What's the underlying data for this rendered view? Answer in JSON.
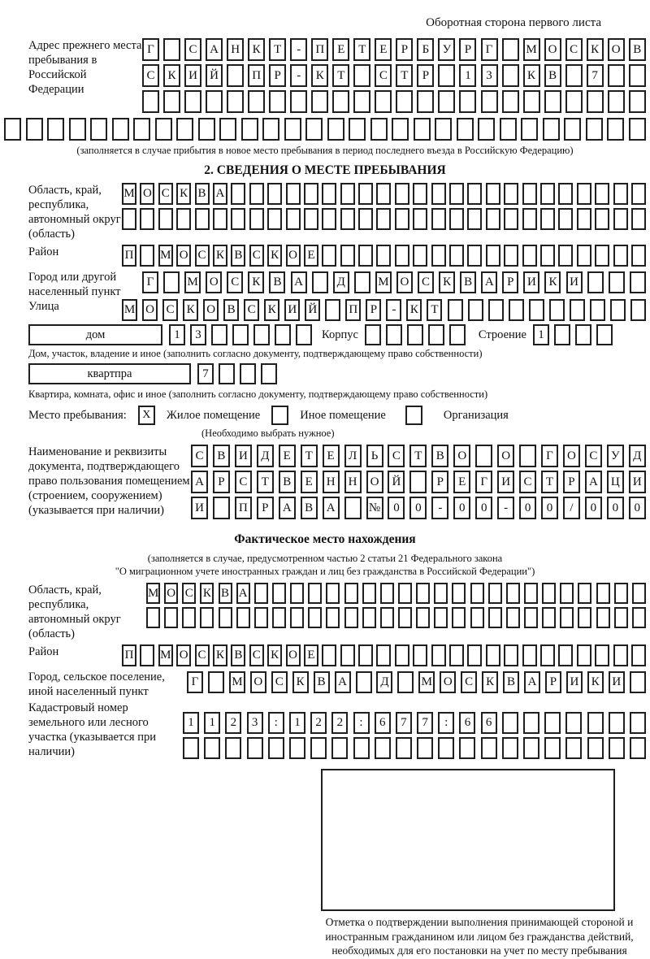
{
  "header": {
    "note": "Оборотная сторона первого листа"
  },
  "labels": {
    "prev_address": "Адрес прежнего места пребывания в Российской Федерации",
    "prev_note": "(заполняется в случае прибытия в новое место пребывания в период последнего въезда в Российскую Федерацию)",
    "section2": "2. СВЕДЕНИЯ О МЕСТЕ ПРЕБЫВАНИЯ",
    "region": "Область, край, республика, автономный округ (область)",
    "district": "Район",
    "city1": "Город или другой населенный пункт",
    "street": "Улица",
    "house": "дом",
    "korpus": "Корпус",
    "stroenie": "Строение",
    "house_note": "Дом, участок, владение и иное (заполнить согласно документу, подтверждающему право собственности)",
    "apartment": "квартпра",
    "apartment_note": "Квартира, комната, офис и иное (заполнить согласно документу, подтверждающему право собственности)",
    "place_type": "Место пребывания:",
    "opt_residential": "Жилое помещение",
    "opt_other": "Иное помещение",
    "opt_org": "Организация",
    "choose_note": "(Необходимо выбрать нужное)",
    "doc_label": "Наименование и реквизиты документа, подтверждающего право пользования помещением (строением, сооружением) (указывается при наличии)",
    "fact_title": "Фактическое место нахождения",
    "fact_note1": "(заполняется в случае, предусмотренном частью 2 статьи 21 Федерального закона",
    "fact_note2": "\"О миграционном учете иностранных граждан и лиц без гражданства в Российской Федерации\")",
    "city2": "Город, сельское поселение, иной населенный пункт",
    "cadastral": "Кадастровый номер земельного или лесного участка (указывается при наличии)",
    "stamp_note": "Отметка о подтверждении выполнения принимающей стороной и иностранным гражданином или лицом без гражданства действий, необходимых для его постановки на учет по месту пребывания"
  },
  "checkboxes": {
    "residential": "X",
    "other": "",
    "organization": ""
  },
  "grids": {
    "prev_row1": [
      "Г",
      "",
      "С",
      "А",
      "Н",
      "К",
      "Т",
      "-",
      "П",
      "Е",
      "Т",
      "Е",
      "Р",
      "Б",
      "У",
      "Р",
      "Г",
      "",
      "М",
      "О",
      "С",
      "К",
      "О",
      "В"
    ],
    "prev_row2": [
      "С",
      "К",
      "И",
      "Й",
      "",
      "П",
      "Р",
      "-",
      "К",
      "Т",
      "",
      "С",
      "Т",
      "Р",
      "",
      "1",
      "3",
      "",
      "К",
      "В",
      "",
      "7",
      "",
      ""
    ],
    "prev_row3": [
      "",
      "",
      "",
      "",
      "",
      "",
      "",
      "",
      "",
      "",
      "",
      "",
      "",
      "",
      "",
      "",
      "",
      "",
      "",
      "",
      "",
      "",
      "",
      ""
    ],
    "prev_row4": [
      "",
      "",
      "",
      "",
      "",
      "",
      "",
      "",
      "",
      "",
      "",
      "",
      "",
      "",
      "",
      "",
      "",
      "",
      "",
      "",
      "",
      "",
      "",
      "",
      "",
      "",
      "",
      "",
      "",
      ""
    ],
    "region1_row1": [
      "М",
      "О",
      "С",
      "К",
      "В",
      "А",
      "",
      "",
      "",
      "",
      "",
      "",
      "",
      "",
      "",
      "",
      "",
      "",
      "",
      "",
      "",
      "",
      "",
      "",
      "",
      "",
      "",
      "",
      ""
    ],
    "region1_row2": [
      "",
      "",
      "",
      "",
      "",
      "",
      "",
      "",
      "",
      "",
      "",
      "",
      "",
      "",
      "",
      "",
      "",
      "",
      "",
      "",
      "",
      "",
      "",
      "",
      "",
      "",
      "",
      "",
      ""
    ],
    "district1": [
      "П",
      "",
      "М",
      "О",
      "С",
      "К",
      "В",
      "С",
      "К",
      "О",
      "Е",
      "",
      "",
      "",
      "",
      "",
      "",
      "",
      "",
      "",
      "",
      "",
      "",
      "",
      "",
      "",
      "",
      "",
      ""
    ],
    "city1": [
      "Г",
      "",
      "М",
      "О",
      "С",
      "К",
      "В",
      "А",
      "",
      "Д",
      "",
      "М",
      "О",
      "С",
      "К",
      "В",
      "А",
      "Р",
      "И",
      "К",
      "И",
      "",
      "",
      ""
    ],
    "street": [
      "М",
      "О",
      "С",
      "К",
      "О",
      "В",
      "С",
      "К",
      "И",
      "Й",
      "",
      "П",
      "Р",
      "-",
      "К",
      "Т",
      "",
      "",
      "",
      "",
      "",
      "",
      "",
      "",
      "",
      ""
    ],
    "house_num": [
      "1",
      "3",
      "",
      "",
      "",
      "",
      ""
    ],
    "korpus": [
      "",
      "",
      "",
      "",
      ""
    ],
    "stroenie": [
      "1",
      "",
      "",
      ""
    ],
    "apartment": [
      "7",
      "",
      "",
      ""
    ],
    "doc_row1": [
      "С",
      "В",
      "И",
      "Д",
      "Е",
      "Т",
      "Е",
      "Л",
      "Ь",
      "С",
      "Т",
      "В",
      "О",
      "",
      "О",
      "",
      "Г",
      "О",
      "С",
      "У",
      "Д"
    ],
    "doc_row2": [
      "А",
      "Р",
      "С",
      "Т",
      "В",
      "Е",
      "Н",
      "Н",
      "О",
      "Й",
      "",
      "Р",
      "Е",
      "Г",
      "И",
      "С",
      "Т",
      "Р",
      "А",
      "Ц",
      "И"
    ],
    "doc_row3": [
      "И",
      "",
      "П",
      "Р",
      "А",
      "В",
      "А",
      "",
      "№",
      "0",
      "0",
      "-",
      "0",
      "0",
      "-",
      "0",
      "0",
      "/",
      "0",
      "0",
      "0"
    ],
    "region2_row1": [
      "М",
      "О",
      "С",
      "К",
      "В",
      "А",
      "",
      "",
      "",
      "",
      "",
      "",
      "",
      "",
      "",
      "",
      "",
      "",
      "",
      "",
      "",
      "",
      "",
      "",
      "",
      "",
      "",
      ""
    ],
    "region2_row2": [
      "",
      "",
      "",
      "",
      "",
      "",
      "",
      "",
      "",
      "",
      "",
      "",
      "",
      "",
      "",
      "",
      "",
      "",
      "",
      "",
      "",
      "",
      "",
      "",
      "",
      "",
      "",
      ""
    ],
    "district2": [
      "П",
      "",
      "М",
      "О",
      "С",
      "К",
      "В",
      "С",
      "К",
      "О",
      "Е",
      "",
      "",
      "",
      "",
      "",
      "",
      "",
      "",
      "",
      "",
      "",
      "",
      "",
      "",
      "",
      "",
      "",
      ""
    ],
    "city2": [
      "Г",
      "",
      "М",
      "О",
      "С",
      "К",
      "В",
      "А",
      "",
      "Д",
      "",
      "М",
      "О",
      "С",
      "К",
      "В",
      "А",
      "Р",
      "И",
      "К",
      "И",
      ""
    ],
    "cad_row1": [
      "1",
      "1",
      "2",
      "3",
      ":",
      "1",
      "2",
      "2",
      ":",
      "6",
      "7",
      "7",
      ":",
      "6",
      "6",
      "",
      "",
      "",
      "",
      "",
      "",
      ""
    ],
    "cad_row2": [
      "",
      "",
      "",
      "",
      "",
      "",
      "",
      "",
      "",
      "",
      "",
      "",
      "",
      "",
      "",
      "",
      "",
      "",
      "",
      "",
      "",
      ""
    ]
  }
}
